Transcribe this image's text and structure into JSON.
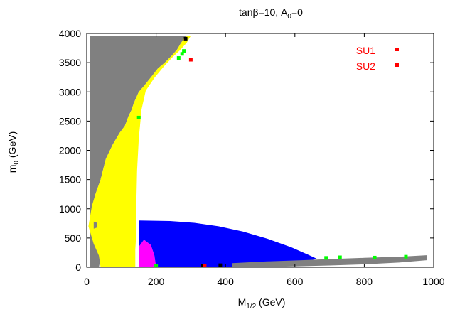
{
  "chart_data": {
    "type": "scatter",
    "title": {
      "main": "tanβ=10, A",
      "sub": "0",
      "rest": "=0"
    },
    "xlabel": {
      "main": "M",
      "sub": "1/2",
      "rest": " (GeV)"
    },
    "ylabel": {
      "main": "m",
      "sub": "0",
      "rest": " (GeV)"
    },
    "xlim": [
      0,
      1000
    ],
    "ylim": [
      0,
      4000
    ],
    "xticks": [
      "0",
      "200",
      "400",
      "600",
      "800",
      "1000"
    ],
    "yticks": [
      "0",
      "500",
      "1000",
      "1500",
      "2000",
      "2500",
      "3000",
      "3500",
      "4000"
    ],
    "grid": false,
    "legend_position": "top-right",
    "colors": {
      "gray": "#808080",
      "yellow": "#ffff00",
      "blue": "#0000ff",
      "magenta": "#ff00ff",
      "green": "#00ff00",
      "black": "#000000",
      "red": "#ff0000"
    },
    "regions": [
      {
        "color": "gray",
        "polygon": [
          [
            10,
            3960
          ],
          [
            165,
            3960
          ],
          [
            160,
            3900
          ],
          [
            150,
            3800
          ],
          [
            130,
            3650
          ],
          [
            115,
            3550
          ],
          [
            100,
            3350
          ],
          [
            85,
            3150
          ],
          [
            70,
            2950
          ],
          [
            55,
            2750
          ],
          [
            40,
            2550
          ],
          [
            25,
            2300
          ],
          [
            10,
            2100
          ]
        ]
      },
      {
        "color": "gray",
        "polygon": [
          [
            10,
            3960
          ],
          [
            10,
            0
          ],
          [
            35,
            0
          ],
          [
            45,
            300
          ],
          [
            40,
            700
          ],
          [
            30,
            950
          ],
          [
            25,
            1250
          ],
          [
            40,
            1500
          ],
          [
            55,
            1850
          ],
          [
            75,
            2100
          ],
          [
            95,
            2300
          ],
          [
            110,
            2420
          ],
          [
            120,
            2580
          ],
          [
            130,
            2700
          ],
          [
            135,
            2800
          ],
          [
            150,
            3000
          ],
          [
            165,
            3100
          ],
          [
            185,
            3250
          ],
          [
            205,
            3400
          ],
          [
            225,
            3500
          ],
          [
            245,
            3620
          ],
          [
            260,
            3720
          ],
          [
            270,
            3820
          ],
          [
            280,
            3910
          ],
          [
            290,
            3960
          ]
        ]
      },
      {
        "color": "yellow",
        "polygon": [
          [
            5,
            700
          ],
          [
            15,
            1050
          ],
          [
            25,
            1250
          ],
          [
            40,
            1500
          ],
          [
            55,
            1850
          ],
          [
            75,
            2100
          ],
          [
            95,
            2300
          ],
          [
            110,
            2420
          ],
          [
            120,
            2580
          ],
          [
            130,
            2700
          ],
          [
            135,
            2800
          ],
          [
            150,
            3000
          ],
          [
            165,
            3100
          ],
          [
            185,
            3250
          ],
          [
            205,
            3400
          ],
          [
            225,
            3500
          ],
          [
            245,
            3620
          ],
          [
            260,
            3720
          ],
          [
            270,
            3820
          ],
          [
            280,
            3910
          ],
          [
            290,
            3960
          ],
          [
            300,
            3960
          ],
          [
            288,
            3840
          ],
          [
            270,
            3720
          ],
          [
            245,
            3580
          ],
          [
            220,
            3420
          ],
          [
            195,
            3240
          ],
          [
            170,
            3020
          ],
          [
            158,
            2700
          ],
          [
            150,
            2200
          ],
          [
            145,
            1650
          ],
          [
            143,
            1100
          ],
          [
            143,
            600
          ],
          [
            140,
            300
          ],
          [
            140,
            0
          ],
          [
            40,
            0
          ],
          [
            35,
            200
          ],
          [
            20,
            400
          ]
        ]
      },
      {
        "color": "gray",
        "polygon": [
          [
            20,
            780
          ],
          [
            30,
            760
          ],
          [
            30,
            680
          ],
          [
            20,
            660
          ]
        ]
      },
      {
        "color": "magenta",
        "polygon": [
          [
            150,
            0
          ],
          [
            150,
            350
          ],
          [
            165,
            470
          ],
          [
            185,
            380
          ],
          [
            195,
            200
          ],
          [
            200,
            0
          ]
        ]
      },
      {
        "color": "blue",
        "polygon": [
          [
            150,
            800
          ],
          [
            240,
            790
          ],
          [
            310,
            760
          ],
          [
            380,
            700
          ],
          [
            450,
            610
          ],
          [
            520,
            490
          ],
          [
            590,
            340
          ],
          [
            640,
            210
          ],
          [
            665,
            140
          ],
          [
            620,
            100
          ],
          [
            560,
            60
          ],
          [
            500,
            25
          ],
          [
            440,
            0
          ],
          [
            200,
            0
          ],
          [
            195,
            200
          ],
          [
            185,
            380
          ],
          [
            165,
            470
          ],
          [
            150,
            350
          ]
        ]
      },
      {
        "color": "gray",
        "polygon": [
          [
            420,
            0
          ],
          [
            420,
            70
          ],
          [
            520,
            100
          ],
          [
            620,
            120
          ],
          [
            700,
            140
          ],
          [
            800,
            160
          ],
          [
            900,
            180
          ],
          [
            980,
            205
          ],
          [
            980,
            120
          ],
          [
            900,
            80
          ],
          [
            800,
            50
          ],
          [
            700,
            30
          ],
          [
            600,
            15
          ],
          [
            500,
            5
          ]
        ]
      }
    ],
    "points": [
      {
        "color": "green",
        "x": 150,
        "y": 2560
      },
      {
        "color": "green",
        "x": 265,
        "y": 3580
      },
      {
        "color": "green",
        "x": 275,
        "y": 3650
      },
      {
        "color": "green",
        "x": 280,
        "y": 3700
      },
      {
        "color": "green",
        "x": 200,
        "y": 30
      },
      {
        "color": "green",
        "x": 690,
        "y": 160
      },
      {
        "color": "green",
        "x": 730,
        "y": 170
      },
      {
        "color": "green",
        "x": 830,
        "y": 165
      },
      {
        "color": "green",
        "x": 920,
        "y": 180
      },
      {
        "color": "black",
        "x": 335,
        "y": 30
      },
      {
        "color": "black",
        "x": 385,
        "y": 35
      },
      {
        "color": "black",
        "x": 285,
        "y": 3910
      }
    ],
    "series": [
      {
        "name": "SU1",
        "color": "red",
        "points": [
          [
            340,
            25
          ]
        ]
      },
      {
        "name": "SU2",
        "color": "red",
        "points": [
          [
            300,
            3550
          ]
        ]
      }
    ]
  }
}
